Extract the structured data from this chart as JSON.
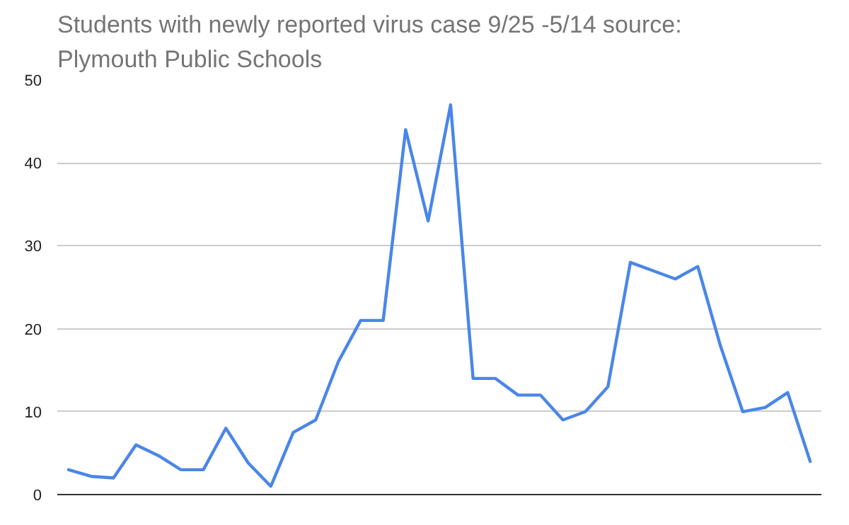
{
  "chart_data": {
    "type": "line",
    "title": "Students with newly reported virus case 9/25 -5/14 source: Plymouth Public Schools",
    "categories": [
      null,
      null,
      null,
      null,
      null,
      null,
      null,
      null,
      null,
      null,
      null,
      null,
      null,
      null,
      null,
      null,
      null,
      null,
      null,
      null,
      null,
      null,
      null,
      null,
      null,
      null,
      null,
      null,
      null,
      null,
      null,
      null,
      null,
      null
    ],
    "series": [
      {
        "color": "#4a86e8",
        "values": [
          3,
          2.2,
          2,
          6,
          4.7,
          3,
          3,
          8,
          3.8,
          1,
          7.5,
          9,
          16,
          21,
          21,
          44,
          33,
          47,
          14,
          14,
          12,
          12,
          9,
          10,
          13,
          28,
          27,
          26,
          27.5,
          18,
          10,
          10.5,
          12.3,
          4
        ]
      }
    ],
    "ylim": [
      0,
      50
    ],
    "yticks": [
      0,
      10,
      20,
      30,
      40,
      50
    ],
    "grid": "y",
    "tick_labels": "y"
  }
}
